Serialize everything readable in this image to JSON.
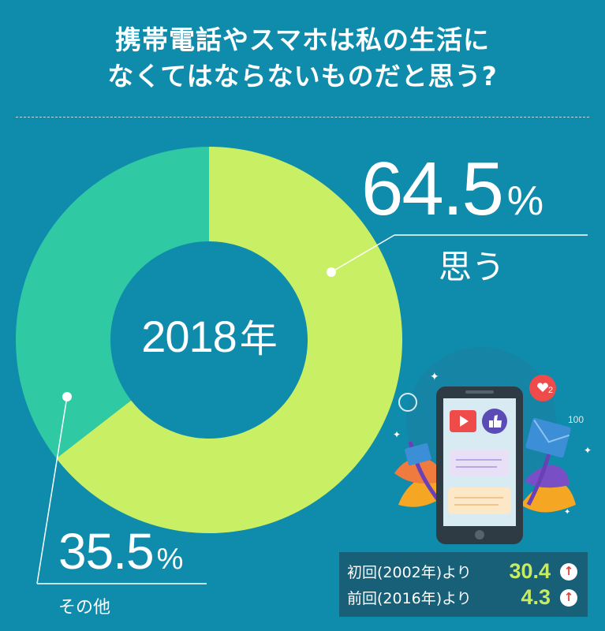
{
  "title": {
    "line1": "携帯電話やスマホは私の生活に",
    "line2": "なくてはならないものだと思う?"
  },
  "chart_data": {
    "type": "pie",
    "donut": true,
    "center_label": "2018年",
    "slices": [
      {
        "label": "思う",
        "value": 64.5,
        "display": "64.5",
        "unit": "%",
        "color": "#c9f065"
      },
      {
        "label": "その他",
        "value": 35.5,
        "display": "35.5",
        "unit": "%",
        "color": "#2fc9a4"
      }
    ]
  },
  "center": {
    "year": "2018",
    "suffix": "年"
  },
  "comparison": [
    {
      "label": "初回(2002年)より",
      "value": "30.4",
      "icon": "up-arrow-icon",
      "color": "#e0413a"
    },
    {
      "label": "前回(2016年)より",
      "value": "4.3",
      "icon": "up-arrow-icon",
      "color": "#e0413a"
    }
  ],
  "colors": {
    "background": "#0f8cab",
    "accent_value": "#c7ec64",
    "panel": "#185f78"
  },
  "phone_illustration": {
    "badge_count": "2",
    "counter": "100"
  }
}
